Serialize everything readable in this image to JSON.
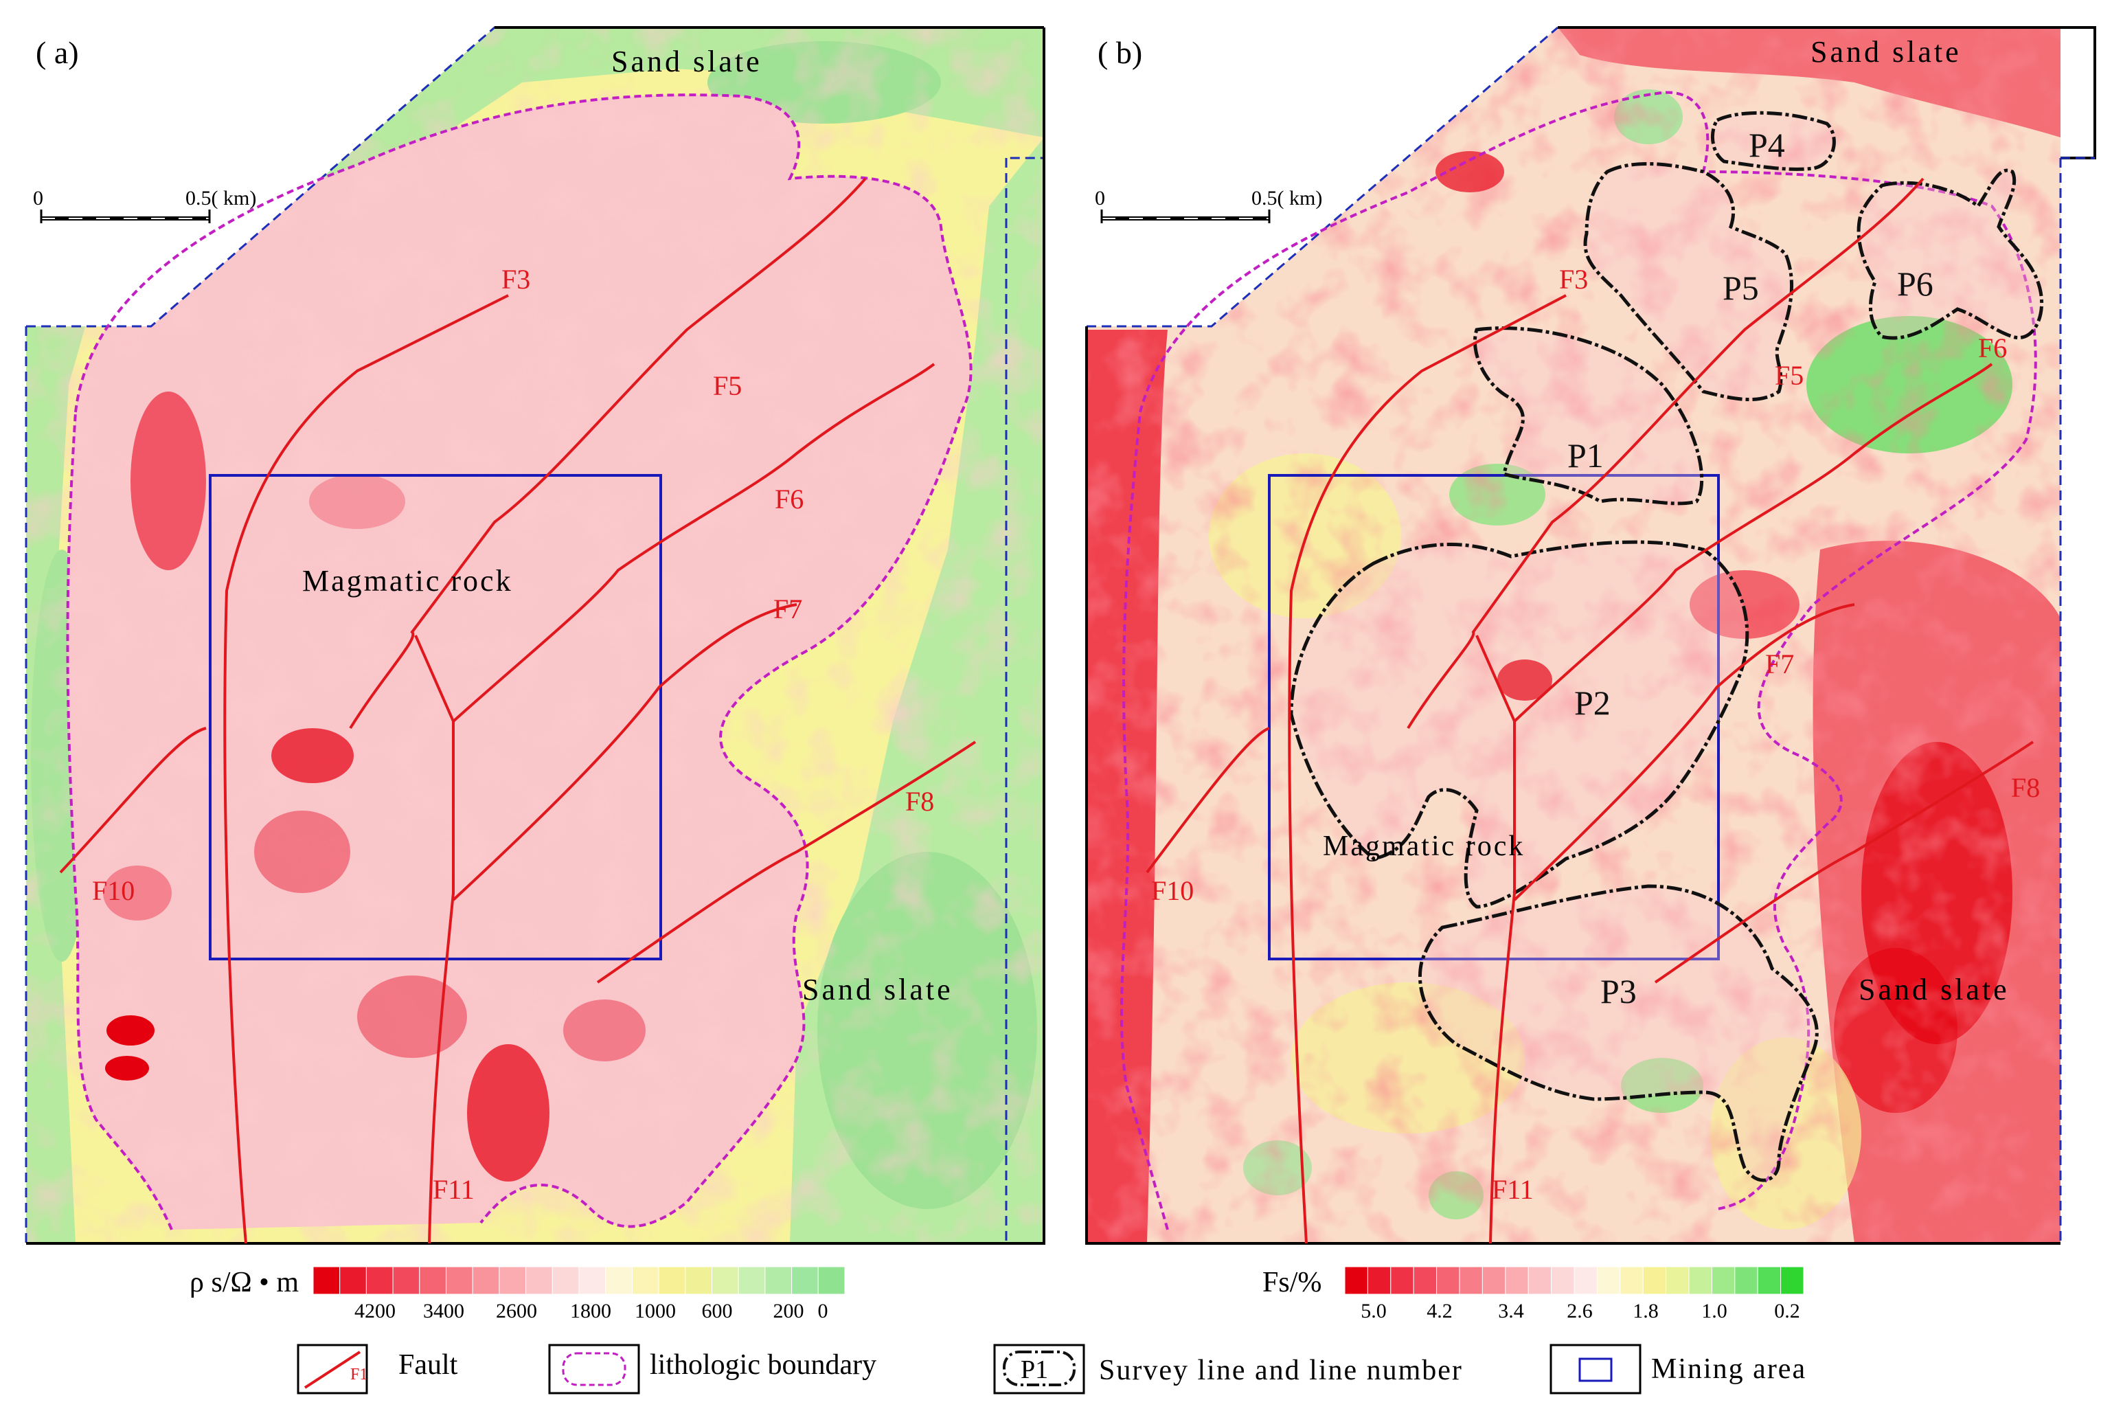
{
  "panel_a": {
    "tag": "( a)",
    "scale_start": "0",
    "scale_end": "0.5( km)",
    "sand_slate_top": "Sand slate",
    "sand_slate_bottom": "Sand slate",
    "magmatic": "Magmatic rock",
    "faults": {
      "f3": "F3",
      "f5": "F5",
      "f6": "F6",
      "f7": "F7",
      "f8": "F8",
      "f10": "F10",
      "f11": "F11"
    }
  },
  "panel_b": {
    "tag": "( b)",
    "scale_start": "0",
    "scale_end": "0.5( km)",
    "sand_slate_top": "Sand slate",
    "sand_slate_bottom": "Sand slate",
    "magmatic": "Magmatic rock",
    "faults": {
      "f3": "F3",
      "f5": "F5",
      "f6": "F6",
      "f7": "F7",
      "f8": "F8",
      "f10": "F10",
      "f11": "F11"
    },
    "survey_lines": {
      "p1": "P1",
      "p2": "P2",
      "p3": "P3",
      "p4": "P4",
      "p5": "P5",
      "p6": "P6"
    }
  },
  "colorbar_a": {
    "title": "ρ s/Ω • m",
    "ticks": [
      "4200",
      "3400",
      "2600",
      "1800",
      "1000",
      "600",
      "200",
      "0"
    ],
    "colors": [
      "#e4000e",
      "#ea1a2c",
      "#ef3245",
      "#f24a5c",
      "#f56472",
      "#f77d88",
      "#f9949d",
      "#fbacb1",
      "#fcc3c6",
      "#fdd8d9",
      "#fde9e7",
      "#fdf7d6",
      "#fbf4b4",
      "#f7f095",
      "#f0f097",
      "#def3aa",
      "#c9f0b3",
      "#b2eaa7",
      "#9de6a0",
      "#8fe290"
    ]
  },
  "colorbar_b": {
    "title": "Fs/%",
    "ticks": [
      "5.0",
      "4.2",
      "3.4",
      "2.6",
      "1.8",
      "1.0",
      "0.2"
    ],
    "colors": [
      "#e4000e",
      "#ea1a2c",
      "#ef3245",
      "#f24a5c",
      "#f56472",
      "#f77d88",
      "#f9949d",
      "#fbacb1",
      "#fcc3c6",
      "#fdd8d9",
      "#fde9e7",
      "#fdf7d6",
      "#fbf4b4",
      "#f7f095",
      "#e8f39a",
      "#c6f09a",
      "#a1ea8c",
      "#7ee479",
      "#54de57",
      "#2fd62f"
    ]
  },
  "legend": {
    "fault_symbol": "F1",
    "fault": "Fault",
    "lithologic": "lithologic boundary",
    "survey_symbol": "P1",
    "survey": "Survey line and line number",
    "mining": "Mining area"
  },
  "colors": {
    "fault": "#e0171d",
    "lithologic_boundary": "#c21fc2",
    "mining_area": "#1a1ab8",
    "survey_line": "#111111",
    "panel_edge_dashed": "#1d2fb8"
  }
}
